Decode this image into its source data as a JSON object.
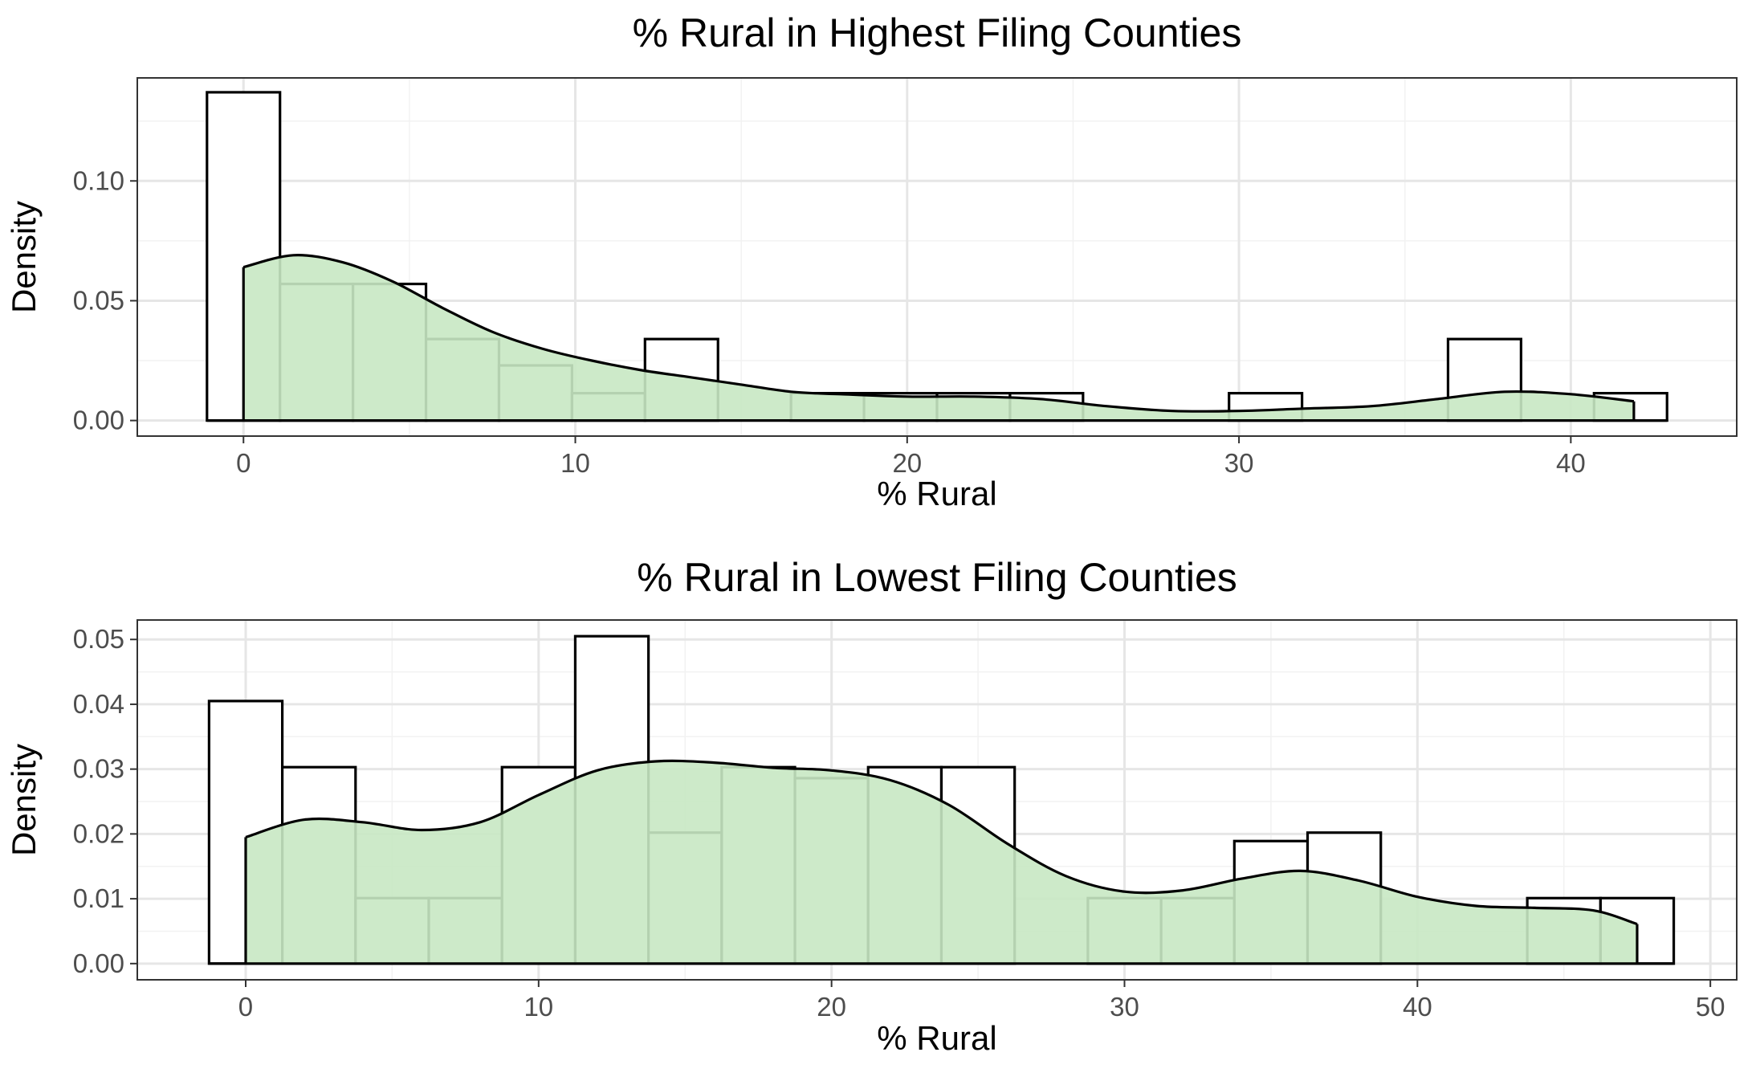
{
  "colors": {
    "density_fill": "#c8e8c3",
    "density_line": "#000000",
    "bar_outline": "#000000",
    "grid_major": "#e6e6e6",
    "grid_minor": "#f2f2f2",
    "panel_border": "#333333"
  },
  "chart_data": [
    {
      "type": "histogram",
      "title": "% Rural in Highest Filing Counties",
      "xlabel": "% Rural",
      "ylabel": "Density",
      "xlim": [
        -3.2,
        45.0
      ],
      "ylim": [
        -0.0065,
        0.143
      ],
      "x_ticks": [
        0,
        10,
        20,
        30,
        40
      ],
      "x_tick_labels": [
        "0",
        "10",
        "20",
        "30",
        "40"
      ],
      "y_ticks": [
        0.0,
        0.05,
        0.1
      ],
      "y_tick_labels": [
        "0.00",
        "0.05",
        "0.10"
      ],
      "x_minor": [
        5,
        15,
        25,
        35
      ],
      "y_minor": [
        0.025,
        0.075,
        0.125
      ],
      "grid": true,
      "bins": [
        {
          "x0": -1.1,
          "x1": 1.1,
          "density": 0.137
        },
        {
          "x0": 1.1,
          "x1": 3.3,
          "density": 0.057
        },
        {
          "x0": 3.3,
          "x1": 5.5,
          "density": 0.057
        },
        {
          "x0": 5.5,
          "x1": 7.7,
          "density": 0.034
        },
        {
          "x0": 7.7,
          "x1": 9.9,
          "density": 0.023
        },
        {
          "x0": 9.9,
          "x1": 12.1,
          "density": 0.0114
        },
        {
          "x0": 12.1,
          "x1": 14.3,
          "density": 0.034
        },
        {
          "x0": 14.3,
          "x1": 16.5,
          "density": 0.0
        },
        {
          "x0": 16.5,
          "x1": 18.7,
          "density": 0.0114
        },
        {
          "x0": 18.7,
          "x1": 20.9,
          "density": 0.0114
        },
        {
          "x0": 20.9,
          "x1": 23.1,
          "density": 0.0114
        },
        {
          "x0": 23.1,
          "x1": 25.3,
          "density": 0.0114
        },
        {
          "x0": 25.3,
          "x1": 27.5,
          "density": 0.0
        },
        {
          "x0": 27.5,
          "x1": 29.7,
          "density": 0.0
        },
        {
          "x0": 29.7,
          "x1": 31.9,
          "density": 0.0114
        },
        {
          "x0": 31.9,
          "x1": 34.1,
          "density": 0.0
        },
        {
          "x0": 34.1,
          "x1": 36.3,
          "density": 0.0
        },
        {
          "x0": 36.3,
          "x1": 38.5,
          "density": 0.034
        },
        {
          "x0": 38.5,
          "x1": 40.7,
          "density": 0.0
        },
        {
          "x0": 40.7,
          "x1": 42.9,
          "density": 0.0114
        }
      ],
      "density_curve": {
        "x": [
          0,
          1.5,
          3,
          4.5,
          6,
          7.5,
          9,
          10.5,
          12,
          13.5,
          15,
          16.5,
          18,
          20,
          22,
          24,
          26,
          28,
          30,
          32,
          34,
          36,
          38,
          40,
          41.9
        ],
        "y": [
          0.064,
          0.069,
          0.066,
          0.058,
          0.047,
          0.037,
          0.03,
          0.025,
          0.021,
          0.018,
          0.015,
          0.012,
          0.011,
          0.01,
          0.01,
          0.009,
          0.006,
          0.004,
          0.004,
          0.005,
          0.006,
          0.009,
          0.012,
          0.011,
          0.008
        ]
      }
    },
    {
      "type": "histogram",
      "title": "% Rural in Lowest Filing Counties",
      "xlabel": "% Rural",
      "ylabel": "Density",
      "xlim": [
        -3.7,
        50.9
      ],
      "ylim": [
        -0.0025,
        0.053
      ],
      "x_ticks": [
        0,
        10,
        20,
        30,
        40,
        50
      ],
      "x_tick_labels": [
        "0",
        "10",
        "20",
        "30",
        "40",
        "50"
      ],
      "y_ticks": [
        0.0,
        0.01,
        0.02,
        0.03,
        0.04,
        0.05
      ],
      "y_tick_labels": [
        "0.00",
        "0.01",
        "0.02",
        "0.03",
        "0.04",
        "0.05"
      ],
      "x_minor": [
        5,
        15,
        25,
        35,
        45
      ],
      "y_minor": [
        0.005,
        0.015,
        0.025,
        0.035,
        0.045
      ],
      "grid": true,
      "bins": [
        {
          "x0": -1.25,
          "x1": 1.25,
          "density": 0.0405
        },
        {
          "x0": 1.25,
          "x1": 3.75,
          "density": 0.0303
        },
        {
          "x0": 3.75,
          "x1": 6.25,
          "density": 0.0101
        },
        {
          "x0": 6.25,
          "x1": 8.75,
          "density": 0.0101
        },
        {
          "x0": 8.75,
          "x1": 11.25,
          "density": 0.0303
        },
        {
          "x0": 11.25,
          "x1": 13.75,
          "density": 0.0505
        },
        {
          "x0": 13.75,
          "x1": 16.25,
          "density": 0.0202
        },
        {
          "x0": 16.25,
          "x1": 18.75,
          "density": 0.0303
        },
        {
          "x0": 18.75,
          "x1": 21.25,
          "density": 0.0286
        },
        {
          "x0": 21.25,
          "x1": 23.75,
          "density": 0.0303
        },
        {
          "x0": 23.75,
          "x1": 26.25,
          "density": 0.0303
        },
        {
          "x0": 26.25,
          "x1": 28.75,
          "density": 0.0
        },
        {
          "x0": 28.75,
          "x1": 31.25,
          "density": 0.0101
        },
        {
          "x0": 31.25,
          "x1": 33.75,
          "density": 0.0101
        },
        {
          "x0": 33.75,
          "x1": 36.25,
          "density": 0.0189
        },
        {
          "x0": 36.25,
          "x1": 38.75,
          "density": 0.0202
        },
        {
          "x0": 38.75,
          "x1": 41.25,
          "density": 0.0
        },
        {
          "x0": 41.25,
          "x1": 43.75,
          "density": 0.0
        },
        {
          "x0": 43.75,
          "x1": 46.25,
          "density": 0.0101
        },
        {
          "x0": 46.25,
          "x1": 48.75,
          "density": 0.0101
        }
      ],
      "density_curve": {
        "x": [
          0,
          2,
          4,
          6,
          8,
          10,
          12,
          14,
          16,
          18,
          20,
          22,
          24,
          26,
          28,
          30,
          32,
          34,
          36,
          38,
          40,
          42,
          44,
          46,
          47.5
        ],
        "y": [
          0.0195,
          0.0222,
          0.0218,
          0.0206,
          0.0218,
          0.026,
          0.0298,
          0.0312,
          0.031,
          0.0302,
          0.0298,
          0.0283,
          0.0245,
          0.0185,
          0.0135,
          0.0111,
          0.0113,
          0.0131,
          0.0143,
          0.0128,
          0.0103,
          0.0089,
          0.0086,
          0.0082,
          0.0061
        ]
      }
    }
  ]
}
